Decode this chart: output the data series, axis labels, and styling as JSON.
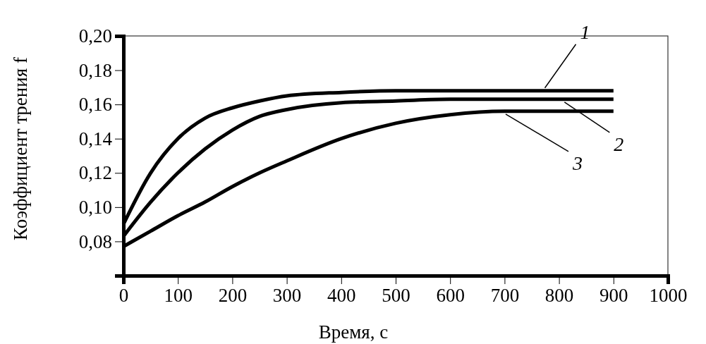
{
  "chart_data": {
    "type": "line",
    "xlabel": "Время,  с",
    "ylabel": "Коэффициент  трения  f",
    "xlim": [
      0,
      1000
    ],
    "xticks": [
      0,
      100,
      200,
      300,
      400,
      500,
      600,
      700,
      800,
      900,
      1000
    ],
    "ylim": [
      0.06,
      0.2
    ],
    "yticks": [
      {
        "value": 0.06,
        "label": null
      },
      {
        "value": 0.08,
        "label": "0,08"
      },
      {
        "value": 0.1,
        "label": "0,10"
      },
      {
        "value": 0.12,
        "label": "0,12"
      },
      {
        "value": 0.14,
        "label": "0,14"
      },
      {
        "value": 0.16,
        "label": "0,16"
      },
      {
        "value": 0.18,
        "label": "0,18"
      },
      {
        "value": 0.2,
        "label": "0,20"
      }
    ],
    "grid": false,
    "legend": "right",
    "marker": "none",
    "line_style": "solid",
    "x": [
      0,
      50,
      100,
      150,
      200,
      250,
      300,
      400,
      500,
      600,
      700,
      800,
      900
    ],
    "series": [
      {
        "name": "1",
        "color": "#000000",
        "values": [
          0.09,
          0.12,
          0.14,
          0.152,
          0.158,
          0.162,
          0.165,
          0.167,
          0.168,
          0.168,
          0.168,
          0.168,
          0.168
        ]
      },
      {
        "name": "2",
        "color": "#000000",
        "values": [
          0.083,
          0.103,
          0.12,
          0.134,
          0.145,
          0.153,
          0.157,
          0.161,
          0.162,
          0.163,
          0.163,
          0.163,
          0.163
        ]
      },
      {
        "name": "3",
        "color": "#000000",
        "values": [
          0.077,
          0.086,
          0.095,
          0.103,
          0.112,
          0.12,
          0.127,
          0.14,
          0.149,
          0.154,
          0.156,
          0.156,
          0.156
        ]
      }
    ]
  }
}
